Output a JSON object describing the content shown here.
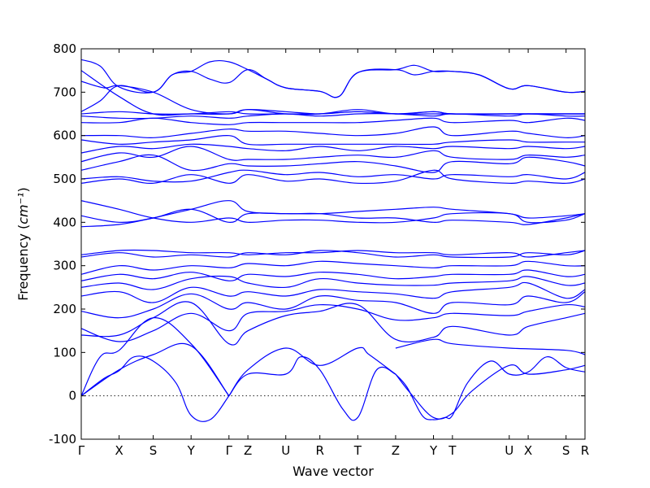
{
  "chart_data": {
    "type": "line",
    "title": "",
    "xlabel": "Wave vector",
    "ylabel": "Frequency",
    "ylabel_unit": "cm⁻¹",
    "ylim": [
      -100,
      800
    ],
    "yticks": [
      -100,
      0,
      100,
      200,
      300,
      400,
      500,
      600,
      700,
      800
    ],
    "zero_line": true,
    "grid": false,
    "legend": "none",
    "line_color": "#0000ff",
    "x_ticks": [
      {
        "label": "Γ",
        "pos": 0.0
      },
      {
        "label": "X",
        "pos": 1.0
      },
      {
        "label": "S",
        "pos": 1.9
      },
      {
        "label": "Y",
        "pos": 2.9
      },
      {
        "label": "Γ",
        "pos": 3.9
      },
      {
        "label": "Z",
        "pos": 4.4
      },
      {
        "label": "U",
        "pos": 5.4
      },
      {
        "label": "R",
        "pos": 6.3
      },
      {
        "label": "T",
        "pos": 7.3
      },
      {
        "label": "Z",
        "pos": 8.3
      },
      {
        "label": "Y",
        "pos": 9.3
      },
      {
        "label": "T",
        "pos": 9.8
      },
      {
        "label": "U",
        "pos": 11.3
      },
      {
        "label": "X",
        "pos": 11.8
      },
      {
        "label": "S",
        "pos": 12.8
      },
      {
        "label": "R",
        "pos": 13.3
      }
    ],
    "series": [
      {
        "x": [
          0,
          1.0,
          1.9,
          2.9,
          3.9
        ],
        "y": [
          0,
          60,
          95,
          115,
          0
        ]
      },
      {
        "x": [
          0,
          0.6,
          1.0,
          1.4,
          1.9,
          2.5,
          2.9,
          3.4,
          3.9
        ],
        "y": [
          0,
          40,
          58,
          90,
          80,
          30,
          -45,
          -55,
          0
        ]
      },
      {
        "x": [
          0,
          0.5,
          1.0,
          1.9,
          2.9,
          3.9
        ],
        "y": [
          0,
          90,
          105,
          180,
          120,
          0
        ]
      },
      {
        "x": [
          3.9,
          4.4,
          5.4,
          5.8,
          6.3,
          6.9,
          7.3,
          7.8,
          8.3
        ],
        "y": [
          0,
          50,
          50,
          90,
          60,
          -30,
          -50,
          60,
          50
        ]
      },
      {
        "x": [
          3.9,
          4.4,
          5.4,
          6.3,
          7.3,
          7.6,
          8.3
        ],
        "y": [
          0,
          60,
          110,
          70,
          110,
          95,
          50
        ]
      },
      {
        "x": [
          8.3,
          8.6,
          9.0,
          9.3,
          9.6,
          9.8,
          10.2,
          10.8,
          11.3,
          11.8,
          12.3,
          12.8,
          13.3
        ],
        "y": [
          50,
          20,
          -45,
          -55,
          -50,
          -45,
          30,
          80,
          50,
          55,
          90,
          65,
          55
        ]
      },
      {
        "x": [
          8.3,
          8.7,
          9.3,
          9.8,
          10.3,
          11.3,
          11.8,
          12.8,
          13.3
        ],
        "y": [
          50,
          5,
          -50,
          -40,
          10,
          70,
          50,
          60,
          70
        ]
      },
      {
        "x": [
          8.3,
          9.3,
          9.8,
          11.3,
          12.8,
          13.3
        ],
        "y": [
          110,
          130,
          120,
          110,
          105,
          95
        ]
      },
      {
        "x": [
          0,
          1.0,
          1.9,
          2.9,
          3.9,
          4.4,
          5.4,
          6.3,
          7.3,
          8.3,
          9.3,
          9.8,
          11.3,
          11.8,
          12.8,
          13.3
        ],
        "y": [
          140,
          140,
          180,
          215,
          120,
          150,
          185,
          195,
          210,
          130,
          135,
          160,
          140,
          160,
          180,
          190
        ]
      },
      {
        "x": [
          0,
          1.0,
          1.9,
          2.9,
          3.9,
          4.4,
          5.4,
          6.3,
          7.3,
          8.3,
          9.3,
          9.8,
          11.3,
          11.8,
          12.8,
          13.3
        ],
        "y": [
          155,
          125,
          150,
          190,
          150,
          190,
          195,
          210,
          200,
          175,
          180,
          190,
          185,
          195,
          210,
          205
        ]
      },
      {
        "x": [
          0,
          1.0,
          1.9,
          2.9,
          3.9,
          4.4,
          5.4,
          6.3,
          7.3,
          8.3,
          9.3,
          9.8,
          11.3,
          11.8,
          12.8,
          13.3
        ],
        "y": [
          195,
          180,
          200,
          235,
          200,
          215,
          200,
          230,
          220,
          215,
          190,
          215,
          210,
          230,
          215,
          240
        ]
      },
      {
        "x": [
          0,
          1.0,
          1.9,
          2.9,
          3.9,
          4.4,
          5.4,
          6.3,
          7.3,
          8.3,
          9.3,
          9.8,
          11.3,
          11.8,
          12.8,
          13.3
        ],
        "y": [
          230,
          240,
          215,
          250,
          230,
          240,
          230,
          245,
          240,
          235,
          225,
          240,
          250,
          260,
          225,
          245
        ]
      },
      {
        "x": [
          0,
          1.0,
          1.9,
          2.9,
          3.9,
          4.4,
          5.4,
          6.3,
          7.3,
          8.3,
          9.3,
          9.8,
          11.3,
          11.8,
          12.8,
          13.3
        ],
        "y": [
          250,
          260,
          245,
          270,
          275,
          260,
          250,
          270,
          260,
          255,
          255,
          260,
          265,
          275,
          255,
          260
        ]
      },
      {
        "x": [
          0,
          1.0,
          1.9,
          2.9,
          3.9,
          4.4,
          5.4,
          6.3,
          7.3,
          8.3,
          9.3,
          9.8,
          11.3,
          11.8,
          12.8,
          13.3
        ],
        "y": [
          265,
          280,
          270,
          285,
          265,
          280,
          275,
          285,
          280,
          270,
          275,
          280,
          280,
          290,
          275,
          280
        ]
      },
      {
        "x": [
          0,
          1.0,
          1.9,
          2.9,
          3.9,
          4.4,
          5.4,
          6.3,
          7.3,
          8.3,
          9.3,
          9.8,
          11.3,
          11.8,
          12.8,
          13.3
        ],
        "y": [
          280,
          300,
          290,
          300,
          295,
          305,
          300,
          310,
          305,
          300,
          295,
          300,
          300,
          310,
          300,
          300
        ]
      },
      {
        "x": [
          0,
          1.0,
          1.9,
          2.9,
          3.9,
          4.4,
          5.4,
          6.3,
          7.3,
          8.3,
          9.3,
          9.8,
          11.3,
          11.8,
          12.8,
          13.3
        ],
        "y": [
          320,
          330,
          320,
          325,
          320,
          330,
          325,
          335,
          330,
          320,
          325,
          320,
          320,
          330,
          325,
          335
        ]
      },
      {
        "x": [
          0,
          1.0,
          1.9,
          2.9,
          3.9,
          4.4,
          5.4,
          6.3,
          7.3,
          8.3,
          9.3,
          9.8,
          11.3,
          11.8,
          12.8,
          13.3
        ],
        "y": [
          325,
          335,
          335,
          330,
          330,
          325,
          330,
          330,
          335,
          330,
          330,
          325,
          330,
          320,
          330,
          335
        ]
      },
      {
        "x": [
          0,
          1.0,
          1.9,
          2.9,
          3.9,
          4.4,
          5.4,
          6.3,
          7.3,
          8.3,
          9.3,
          9.8,
          11.3,
          11.8,
          12.8,
          13.3
        ],
        "y": [
          390,
          395,
          410,
          430,
          450,
          425,
          420,
          420,
          410,
          410,
          400,
          405,
          400,
          395,
          410,
          420
        ]
      },
      {
        "x": [
          0,
          1.0,
          1.9,
          2.9,
          3.9,
          4.4,
          5.4,
          6.3,
          7.3,
          8.3,
          9.3,
          9.8,
          11.3,
          11.8,
          12.8,
          13.3
        ],
        "y": [
          415,
          400,
          410,
          430,
          400,
          420,
          420,
          420,
          425,
          430,
          435,
          430,
          420,
          410,
          415,
          420
        ]
      },
      {
        "x": [
          0,
          1.0,
          1.9,
          2.9,
          3.9,
          4.4,
          5.4,
          6.3,
          7.3,
          8.3,
          9.3,
          9.8,
          11.3,
          11.8,
          12.8,
          13.3
        ],
        "y": [
          450,
          430,
          410,
          400,
          410,
          400,
          405,
          405,
          400,
          400,
          410,
          420,
          420,
          400,
          405,
          420
        ]
      },
      {
        "x": [
          0,
          1.0,
          1.9,
          2.9,
          3.9,
          4.4,
          5.4,
          6.3,
          7.3,
          8.3,
          9.3,
          9.8,
          11.3,
          11.8,
          12.8,
          13.3
        ],
        "y": [
          490,
          500,
          490,
          510,
          490,
          510,
          495,
          500,
          490,
          495,
          520,
          500,
          490,
          495,
          490,
          500
        ]
      },
      {
        "x": [
          0,
          1.0,
          1.9,
          2.9,
          3.9,
          4.4,
          5.4,
          6.3,
          7.3,
          8.3,
          9.3,
          9.8,
          11.3,
          11.8,
          12.8,
          13.3
        ],
        "y": [
          500,
          505,
          495,
          495,
          515,
          520,
          510,
          515,
          505,
          510,
          500,
          510,
          505,
          510,
          500,
          515
        ]
      },
      {
        "x": [
          0,
          1.0,
          1.9,
          2.9,
          3.9,
          4.4,
          5.4,
          6.3,
          7.3,
          8.3,
          9.3,
          9.8,
          11.3,
          11.8,
          12.8,
          13.3
        ],
        "y": [
          520,
          540,
          555,
          520,
          535,
          530,
          530,
          535,
          540,
          530,
          515,
          540,
          535,
          550,
          540,
          530
        ]
      },
      {
        "x": [
          0,
          1.0,
          1.9,
          2.9,
          3.9,
          4.4,
          5.4,
          6.3,
          7.3,
          8.3,
          9.3,
          9.8,
          11.3,
          11.8,
          12.8,
          13.3
        ],
        "y": [
          540,
          560,
          550,
          575,
          545,
          545,
          545,
          550,
          555,
          550,
          565,
          550,
          545,
          555,
          550,
          555
        ]
      },
      {
        "x": [
          0,
          1.0,
          1.9,
          2.9,
          3.9,
          4.4,
          5.4,
          6.3,
          7.3,
          8.3,
          9.3,
          9.8,
          11.3,
          11.8,
          12.8,
          13.3
        ],
        "y": [
          560,
          575,
          570,
          580,
          575,
          570,
          565,
          575,
          565,
          575,
          570,
          575,
          570,
          575,
          570,
          575
        ]
      },
      {
        "x": [
          0,
          1.0,
          1.9,
          2.9,
          3.9,
          4.4,
          5.4,
          6.3,
          7.3,
          8.3,
          9.3,
          9.8,
          11.3,
          11.8,
          12.8,
          13.3
        ],
        "y": [
          590,
          580,
          585,
          590,
          600,
          580,
          580,
          580,
          580,
          580,
          580,
          585,
          590,
          585,
          585,
          585
        ]
      },
      {
        "x": [
          0,
          1.0,
          1.9,
          2.9,
          3.9,
          4.4,
          5.4,
          6.3,
          7.3,
          8.3,
          9.3,
          9.8,
          11.3,
          11.8,
          12.8,
          13.3
        ],
        "y": [
          600,
          600,
          595,
          605,
          615,
          610,
          610,
          605,
          600,
          605,
          620,
          600,
          610,
          605,
          595,
          600
        ]
      },
      {
        "x": [
          0,
          1.0,
          1.9,
          2.9,
          3.9,
          4.4,
          5.4,
          6.3,
          7.3,
          8.3,
          9.3,
          9.8,
          11.3,
          11.8,
          12.8,
          13.3
        ],
        "y": [
          630,
          630,
          640,
          630,
          625,
          630,
          630,
          630,
          630,
          635,
          640,
          630,
          635,
          630,
          640,
          635
        ]
      },
      {
        "x": [
          0,
          1.0,
          1.9,
          2.9,
          3.9,
          4.4,
          5.4,
          6.3,
          7.3,
          8.3,
          9.3,
          9.8,
          11.3,
          11.8,
          12.8,
          13.3
        ],
        "y": [
          645,
          640,
          640,
          645,
          640,
          645,
          650,
          645,
          650,
          650,
          645,
          650,
          645,
          650,
          645,
          645
        ]
      },
      {
        "x": [
          0,
          1.0,
          1.9,
          2.9,
          3.9,
          4.4,
          5.4,
          6.3,
          7.3,
          8.3,
          9.3,
          9.8,
          11.3,
          11.8,
          12.8,
          13.3
        ],
        "y": [
          650,
          655,
          650,
          650,
          655,
          650,
          650,
          650,
          655,
          650,
          650,
          650,
          650,
          650,
          650,
          650
        ]
      },
      {
        "x": [
          0,
          0.5,
          1.0,
          1.9,
          2.4,
          2.9,
          3.4,
          3.9,
          4.4,
          4.9,
          5.4,
          6.3,
          6.8,
          7.3,
          8.3,
          8.8,
          9.3,
          9.8,
          10.5,
          11.3,
          11.8,
          12.8,
          13.3
        ],
        "y": [
          655,
          680,
          715,
          700,
          740,
          748,
          730,
          722,
          752,
          730,
          710,
          702,
          690,
          745,
          752,
          740,
          748,
          748,
          740,
          708,
          715,
          700,
          702
        ]
      },
      {
        "x": [
          0,
          0.5,
          1.0,
          1.9,
          2.4,
          2.9,
          3.4,
          3.9,
          4.4,
          4.9,
          5.4,
          6.3,
          6.8,
          7.3,
          8.3,
          8.8,
          9.3,
          9.8,
          10.5,
          11.3,
          11.8,
          12.8,
          13.3
        ],
        "y": [
          775,
          760,
          712,
          700,
          740,
          748,
          770,
          770,
          752,
          730,
          710,
          702,
          690,
          745,
          752,
          762,
          748,
          748,
          740,
          708,
          715,
          700,
          702
        ]
      },
      {
        "x": [
          0,
          0.6,
          1.0,
          1.9,
          2.9,
          3.9,
          4.4,
          5.4,
          6.3,
          7.3,
          8.3,
          9.3,
          9.8,
          11.3,
          11.8,
          12.8,
          13.3
        ],
        "y": [
          725,
          710,
          715,
          700,
          660,
          650,
          660,
          655,
          650,
          655,
          650,
          655,
          650,
          650,
          650,
          650,
          650
        ]
      },
      {
        "x": [
          0,
          1.0,
          1.9,
          2.9,
          3.9,
          4.4,
          5.4,
          6.3,
          7.3,
          8.3,
          9.3,
          9.8,
          11.3,
          11.8,
          12.8,
          13.3
        ],
        "y": [
          750,
          690,
          650,
          650,
          650,
          660,
          650,
          650,
          660,
          650,
          655,
          650,
          650,
          650,
          650,
          650
        ]
      }
    ]
  }
}
